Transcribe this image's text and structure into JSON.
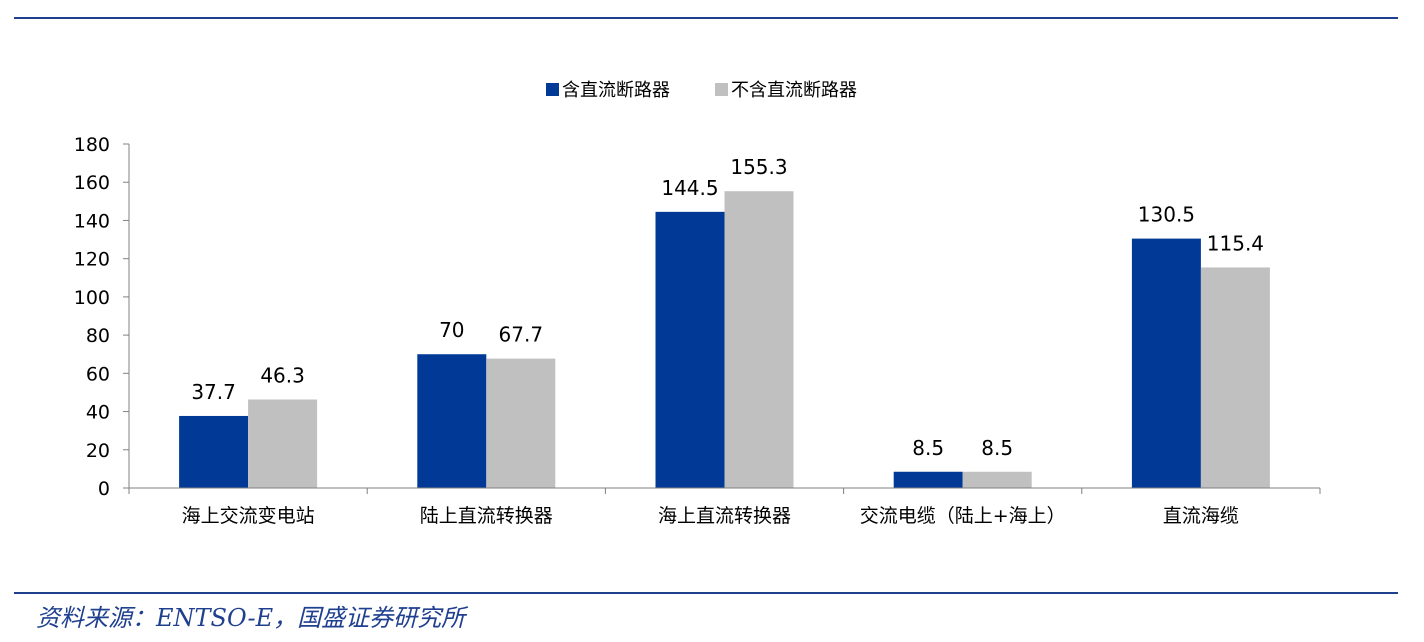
{
  "chart_data": {
    "type": "bar",
    "categories": [
      "海上交流变电站",
      "陆上直流转换器",
      "海上直流转换器",
      "交流电缆（陆上+海上）",
      "直流海缆"
    ],
    "series": [
      {
        "name": "含直流断路器",
        "values": [
          37.7,
          70,
          144.5,
          8.5,
          130.5
        ],
        "labels": [
          "37.7",
          "70",
          "144.5",
          "8.5",
          "130.5"
        ],
        "color": "#003a96"
      },
      {
        "name": "不含直流断路器",
        "values": [
          46.3,
          67.7,
          155.3,
          8.5,
          115.4
        ],
        "labels": [
          "46.3",
          "67.7",
          "155.3",
          "8.5",
          "115.4"
        ],
        "color": "#c0c0c0"
      }
    ],
    "title": "",
    "xlabel": "",
    "ylabel": "",
    "ylim": [
      0,
      180
    ],
    "yticks": [
      "0",
      "20",
      "40",
      "60",
      "80",
      "100",
      "120",
      "140",
      "160",
      "180"
    ],
    "grid": false,
    "legend_position": "top-center"
  },
  "source": "资料来源：ENTSO-E，国盛证券研究所",
  "colors": {
    "rule": "#1f3f8f",
    "axis": "#808080"
  }
}
